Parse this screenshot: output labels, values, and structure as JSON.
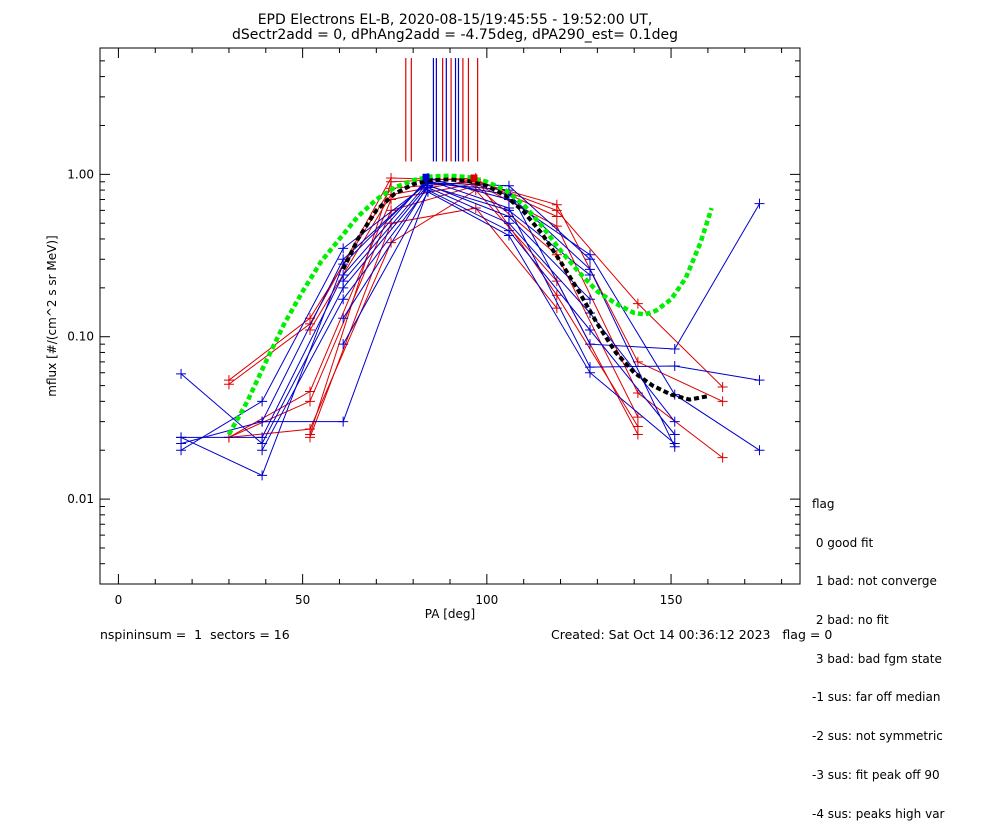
{
  "chart_data": {
    "type": "line",
    "title": "EPD Electrons EL-B, 2020-08-15/19:45:55 - 19:52:00 UT,",
    "subtitle": "dSectr2add = 0, dPhAng2add = -4.75deg, dPA290_est=   0.1deg",
    "xlabel": "PA [deg]",
    "ylabel": "mflux [#/(cm^2 s sr MeV)]",
    "xlim": [
      -5,
      185
    ],
    "ylim": [
      0.003,
      6
    ],
    "yscale": "log",
    "x_ticks": [
      0,
      50,
      100,
      150
    ],
    "x_tick_labels": [
      "0",
      "50",
      "100",
      "150"
    ],
    "y_ticks": [
      0.01,
      0.1,
      1.0
    ],
    "y_tick_labels": [
      "0.01",
      "0.10",
      "1.00"
    ],
    "grid": false,
    "colors": {
      "red": "#dd0000",
      "blue": "#0000cc",
      "green": "#00ee00",
      "black": "#000000"
    },
    "blue_traces": [
      [
        [
          17,
          0.024
        ],
        [
          39,
          0.024
        ],
        [
          61,
          0.24
        ],
        [
          84,
          0.95
        ],
        [
          106,
          0.7
        ],
        [
          128,
          0.32
        ],
        [
          151,
          0.044
        ],
        [
          174,
          0.02
        ]
      ],
      [
        [
          17,
          0.022
        ],
        [
          39,
          0.03
        ],
        [
          61,
          0.3
        ],
        [
          84,
          0.9
        ],
        [
          106,
          0.75
        ],
        [
          128,
          0.26
        ],
        [
          151,
          0.021
        ]
      ],
      [
        [
          17,
          0.02
        ],
        [
          39,
          0.04
        ],
        [
          61,
          0.35
        ],
        [
          84,
          0.88
        ],
        [
          106,
          0.8
        ],
        [
          128,
          0.09
        ],
        [
          151,
          0.084
        ],
        [
          174,
          0.66
        ]
      ],
      [
        [
          17,
          0.024
        ],
        [
          39,
          0.014
        ],
        [
          61,
          0.28
        ],
        [
          84,
          0.92
        ],
        [
          106,
          0.62
        ],
        [
          128,
          0.065
        ],
        [
          151,
          0.066
        ],
        [
          174,
          0.054
        ]
      ],
      [
        [
          17,
          0.059
        ],
        [
          39,
          0.022
        ],
        [
          61,
          0.2
        ],
        [
          84,
          0.86
        ],
        [
          106,
          0.55
        ],
        [
          128,
          0.17
        ]
      ],
      [
        [
          39,
          0.02
        ],
        [
          61,
          0.17
        ],
        [
          84,
          0.83
        ],
        [
          106,
          0.5
        ],
        [
          128,
          0.14
        ],
        [
          151,
          0.03
        ]
      ],
      [
        [
          39,
          0.03
        ],
        [
          61,
          0.03
        ],
        [
          84,
          0.8
        ],
        [
          106,
          0.45
        ],
        [
          128,
          0.11
        ],
        [
          151,
          0.025
        ]
      ],
      [
        [
          61,
          0.09
        ],
        [
          84,
          0.78
        ],
        [
          106,
          0.42
        ],
        [
          128,
          0.06
        ],
        [
          151,
          0.022
        ]
      ],
      [
        [
          61,
          0.13
        ],
        [
          84,
          0.85
        ],
        [
          106,
          0.6
        ],
        [
          128,
          0.24
        ]
      ],
      [
        [
          61,
          0.22
        ],
        [
          84,
          0.89
        ],
        [
          106,
          0.85
        ],
        [
          128,
          0.3
        ]
      ]
    ],
    "red_traces": [
      [
        [
          30,
          0.051
        ],
        [
          52,
          0.12
        ],
        [
          74,
          0.95
        ],
        [
          97,
          0.92
        ],
        [
          119,
          0.6
        ],
        [
          141,
          0.16
        ],
        [
          164,
          0.049
        ]
      ],
      [
        [
          30,
          0.054
        ],
        [
          52,
          0.13
        ],
        [
          74,
          0.82
        ],
        [
          97,
          0.9
        ],
        [
          119,
          0.65
        ],
        [
          141,
          0.07
        ],
        [
          164,
          0.04
        ]
      ],
      [
        [
          30,
          0.024
        ],
        [
          52,
          0.046
        ],
        [
          74,
          0.7
        ],
        [
          97,
          0.88
        ],
        [
          119,
          0.48
        ],
        [
          141,
          0.045
        ],
        [
          164,
          0.018
        ]
      ],
      [
        [
          30,
          0.024
        ],
        [
          52,
          0.04
        ],
        [
          74,
          0.6
        ],
        [
          97,
          0.85
        ],
        [
          119,
          0.32
        ],
        [
          141,
          0.032
        ]
      ],
      [
        [
          30,
          0.024
        ],
        [
          52,
          0.027
        ],
        [
          74,
          0.38
        ],
        [
          97,
          0.8
        ],
        [
          119,
          0.22
        ],
        [
          141,
          0.025
        ]
      ],
      [
        [
          52,
          0.025
        ],
        [
          74,
          0.9
        ],
        [
          97,
          0.95
        ],
        [
          119,
          0.18
        ],
        [
          141,
          0.028
        ]
      ],
      [
        [
          52,
          0.024
        ],
        [
          74,
          0.5
        ],
        [
          97,
          0.62
        ],
        [
          119,
          0.15
        ]
      ],
      [
        [
          52,
          0.11
        ],
        [
          74,
          0.75
        ],
        [
          97,
          0.93
        ],
        [
          119,
          0.55
        ]
      ]
    ],
    "green_fit": [
      [
        30,
        0.025
      ],
      [
        35,
        0.04
      ],
      [
        40,
        0.07
      ],
      [
        45,
        0.12
      ],
      [
        50,
        0.19
      ],
      [
        55,
        0.29
      ],
      [
        60,
        0.4
      ],
      [
        65,
        0.55
      ],
      [
        70,
        0.7
      ],
      [
        75,
        0.83
      ],
      [
        80,
        0.92
      ],
      [
        85,
        0.97
      ],
      [
        90,
        0.98
      ],
      [
        95,
        0.96
      ],
      [
        100,
        0.9
      ],
      [
        105,
        0.8
      ],
      [
        110,
        0.65
      ],
      [
        115,
        0.48
      ],
      [
        120,
        0.34
      ],
      [
        125,
        0.25
      ],
      [
        130,
        0.19
      ],
      [
        135,
        0.16
      ],
      [
        140,
        0.14
      ],
      [
        143,
        0.137
      ],
      [
        146,
        0.145
      ],
      [
        150,
        0.17
      ],
      [
        154,
        0.23
      ],
      [
        158,
        0.38
      ],
      [
        161,
        0.62
      ]
    ],
    "black_fit": [
      [
        61,
        0.26
      ],
      [
        65,
        0.4
      ],
      [
        70,
        0.6
      ],
      [
        75,
        0.76
      ],
      [
        80,
        0.87
      ],
      [
        85,
        0.92
      ],
      [
        90,
        0.93
      ],
      [
        95,
        0.91
      ],
      [
        100,
        0.85
      ],
      [
        105,
        0.74
      ],
      [
        110,
        0.59
      ],
      [
        115,
        0.43
      ],
      [
        120,
        0.29
      ],
      [
        125,
        0.19
      ],
      [
        130,
        0.12
      ],
      [
        135,
        0.08
      ],
      [
        140,
        0.06
      ],
      [
        145,
        0.05
      ],
      [
        150,
        0.044
      ],
      [
        155,
        0.041
      ],
      [
        160,
        0.043
      ]
    ],
    "peak_markers": [
      {
        "x": 78.0,
        "color": "red"
      },
      {
        "x": 79.5,
        "color": "red"
      },
      {
        "x": 85.5,
        "color": "blue"
      },
      {
        "x": 86.3,
        "color": "blue"
      },
      {
        "x": 88.0,
        "color": "red"
      },
      {
        "x": 89.0,
        "color": "blue"
      },
      {
        "x": 90.3,
        "color": "red"
      },
      {
        "x": 91.5,
        "color": "blue"
      },
      {
        "x": 92.3,
        "color": "blue"
      },
      {
        "x": 93.5,
        "color": "red"
      },
      {
        "x": 95.0,
        "color": "red"
      },
      {
        "x": 97.5,
        "color": "red"
      }
    ]
  },
  "legend": {
    "header": "flag",
    "items": [
      " 0 good fit",
      " 1 bad: not converge",
      " 2 bad: no fit",
      " 3 bad: bad fgm state",
      "-1 sus: far off median",
      "-2 sus: not symmetric",
      "-3 sus: fit peak off 90",
      "-4 sus: peaks high var"
    ]
  },
  "footer": {
    "left": "nspininsum =  1  sectors = 16",
    "right": "Created: Sat Oct 14 00:36:12 2023   flag = 0"
  }
}
